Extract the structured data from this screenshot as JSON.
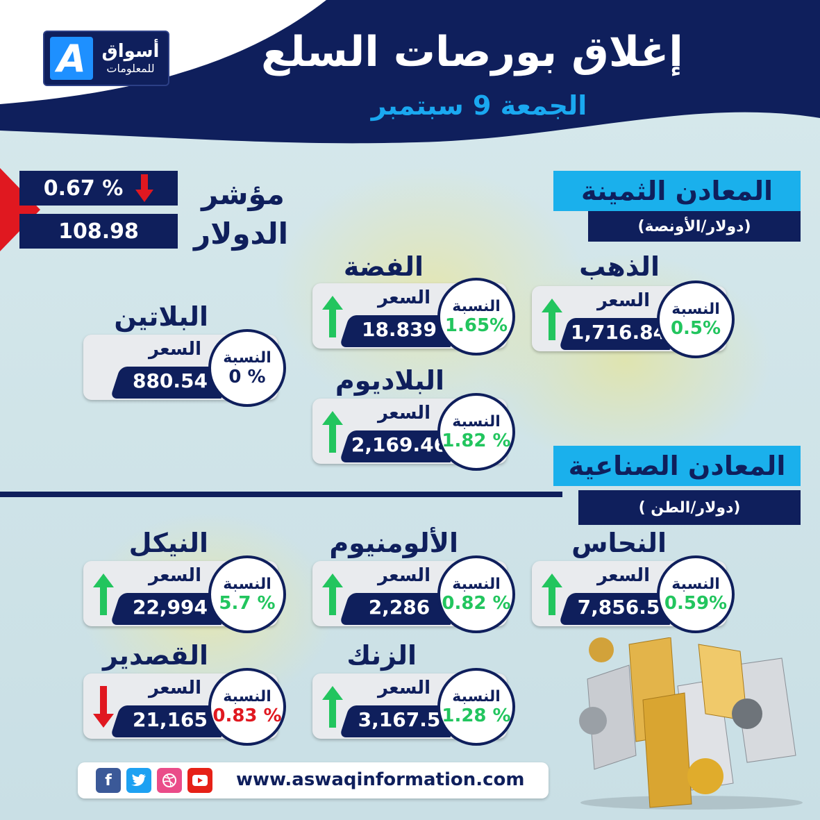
{
  "header": {
    "logo_text_1": "أسواق",
    "logo_text_2": "للمعلومات",
    "logo_mark": "A",
    "title": "إغلاق بورصات السلع",
    "date": "الجمعة 9 سبتمبر"
  },
  "dollar_index": {
    "label_1": "مؤشر",
    "label_2": "الدولار",
    "change": "0.67 %",
    "direction": "down",
    "value": "108.98"
  },
  "precious": {
    "title": "المعادن الثمينة",
    "unit": "(دولار/الأونصة)",
    "items": [
      {
        "name": "الذهب",
        "price_label": "السعر",
        "price": "1,716.84",
        "pct_label": "النسبة",
        "pct": "0.5%",
        "direction": "up"
      },
      {
        "name": "الفضة",
        "price_label": "السعر",
        "price": "18.839",
        "pct_label": "النسبة",
        "pct": "1.65%",
        "direction": "up"
      },
      {
        "name": "البلاتين",
        "price_label": "السعر",
        "price": "880.54",
        "pct_label": "النسبة",
        "pct": "0 %",
        "direction": "none"
      },
      {
        "name": "البلاديوم",
        "price_label": "السعر",
        "price": "2,169.46",
        "pct_label": "النسبة",
        "pct": "1.82 %",
        "direction": "up"
      }
    ]
  },
  "industrial": {
    "title": "المعادن الصناعية",
    "unit": "(دولار/الطن )",
    "items": [
      {
        "name": "النحاس",
        "price_label": "السعر",
        "price": "7,856.5",
        "pct_label": "النسبة",
        "pct": "0.59%",
        "direction": "up"
      },
      {
        "name": "الألومنيوم",
        "price_label": "السعر",
        "price": "2,286",
        "pct_label": "النسبة",
        "pct": "0.82 %",
        "direction": "up"
      },
      {
        "name": "النيكل",
        "price_label": "السعر",
        "price": "22,994",
        "pct_label": "النسبة",
        "pct": "5.7 %",
        "direction": "up"
      },
      {
        "name": "الزنك",
        "price_label": "السعر",
        "price": "3,167.5",
        "pct_label": "النسبة",
        "pct": "1.28 %",
        "direction": "up"
      },
      {
        "name": "القصدير",
        "price_label": "السعر",
        "price": "21,165",
        "pct_label": "النسبة",
        "pct": "0.83 %",
        "direction": "down"
      }
    ]
  },
  "footer": {
    "url": "www.aswaqinformation.com",
    "icons": [
      "facebook-icon",
      "twitter-icon",
      "dribbble-icon",
      "youtube-icon"
    ]
  },
  "colors": {
    "navy": "#0f1f5c",
    "cyan": "#1ab0ec",
    "up": "#22c55e",
    "down": "#e01820"
  }
}
